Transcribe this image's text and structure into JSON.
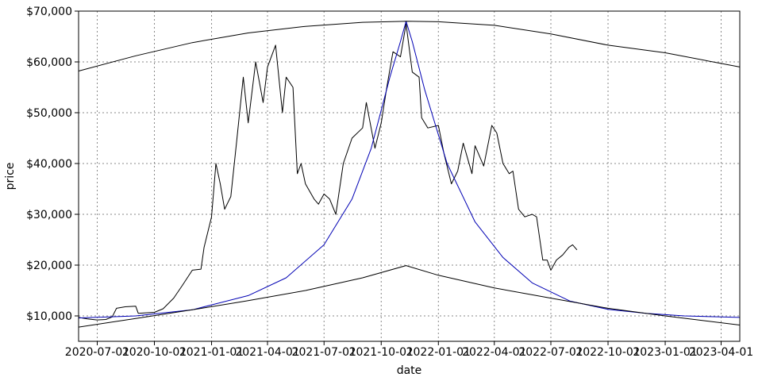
{
  "chart_data": {
    "type": "line",
    "title": "",
    "xlabel": "date",
    "ylabel": "price",
    "xlim": [
      "2020-06-01",
      "2023-05-01"
    ],
    "ylim": [
      5000,
      70000
    ],
    "grid": true,
    "x_ticks": [
      "2020-07-01",
      "2020-10-01",
      "2021-01-01",
      "2021-04-01",
      "2021-07-01",
      "2021-10-01",
      "2022-01-01",
      "2022-04-01",
      "2022-07-01",
      "2022-10-01",
      "2023-01-01",
      "2023-04-01"
    ],
    "x_tick_labels": [
      "2020-07-01",
      "2020-10-01",
      "2021-01-01",
      "2021-04-01",
      "2021-07-01",
      "2021-10-01",
      "2022-01-01",
      "2022-04-01",
      "2022-07-01",
      "2022-10-01",
      "2023-01-01",
      "2023-04-01"
    ],
    "y_ticks": [
      10000,
      20000,
      30000,
      40000,
      50000,
      60000,
      70000
    ],
    "y_tick_labels": [
      "$10,000",
      "$20,000",
      "$30,000",
      "$40,000",
      "$50,000",
      "$60,000",
      "$70,000"
    ],
    "series": [
      {
        "color": "#000000",
        "x": [
          "2020-06-01",
          "2020-06-15",
          "2020-07-01",
          "2020-07-15",
          "2020-07-25",
          "2020-08-01",
          "2020-08-15",
          "2020-09-01",
          "2020-09-05",
          "2020-09-15",
          "2020-10-01",
          "2020-10-15",
          "2020-11-01",
          "2020-11-15",
          "2020-12-01",
          "2020-12-15",
          "2020-12-20",
          "2021-01-01",
          "2021-01-08",
          "2021-01-15",
          "2021-01-22",
          "2021-02-01",
          "2021-02-10",
          "2021-02-21",
          "2021-03-01",
          "2021-03-13",
          "2021-03-25",
          "2021-04-01",
          "2021-04-14",
          "2021-04-25",
          "2021-05-01",
          "2021-05-12",
          "2021-05-19",
          "2021-05-25",
          "2021-06-01",
          "2021-06-15",
          "2021-06-22",
          "2021-07-01",
          "2021-07-10",
          "2021-07-20",
          "2021-08-01",
          "2021-08-15",
          "2021-09-01",
          "2021-09-07",
          "2021-09-21",
          "2021-10-01",
          "2021-10-10",
          "2021-10-20",
          "2021-11-01",
          "2021-11-10",
          "2021-11-20",
          "2021-12-01",
          "2021-12-05",
          "2021-12-15",
          "2022-01-01",
          "2022-01-10",
          "2022-01-22",
          "2022-02-01",
          "2022-02-10",
          "2022-02-24",
          "2022-03-01",
          "2022-03-15",
          "2022-03-28",
          "2022-04-05",
          "2022-04-15",
          "2022-04-25",
          "2022-05-01",
          "2022-05-10",
          "2022-05-20",
          "2022-06-01",
          "2022-06-08",
          "2022-06-18",
          "2022-06-25",
          "2022-07-01",
          "2022-07-10",
          "2022-07-20",
          "2022-07-30",
          "2022-08-05",
          "2022-08-12"
        ],
        "y": [
          9700,
          9400,
          9200,
          9300,
          9800,
          11500,
          11800,
          11900,
          10500,
          10600,
          10700,
          11400,
          13500,
          16000,
          19000,
          19200,
          23500,
          29500,
          40000,
          36000,
          31000,
          33500,
          44000,
          57000,
          48000,
          60000,
          52000,
          59000,
          63300,
          50000,
          57000,
          55000,
          38000,
          40000,
          36000,
          33000,
          32000,
          34000,
          33000,
          30000,
          40000,
          45000,
          47000,
          52000,
          43000,
          48000,
          55000,
          62000,
          61000,
          67500,
          58000,
          57000,
          49000,
          47000,
          47500,
          42000,
          36000,
          38500,
          44000,
          38000,
          43500,
          39500,
          47500,
          46000,
          40000,
          38000,
          38500,
          31000,
          29500,
          30000,
          29500,
          21000,
          21000,
          19000,
          21000,
          22000,
          23500,
          24000,
          23000
        ]
      },
      {
        "color": "#0000b4",
        "x": [
          "2020-06-01",
          "2020-09-01",
          "2020-12-01",
          "2021-03-01",
          "2021-05-01",
          "2021-07-01",
          "2021-08-15",
          "2021-09-15",
          "2021-10-15",
          "2021-11-01",
          "2021-11-10",
          "2021-11-20",
          "2021-12-10",
          "2022-01-15",
          "2022-03-01",
          "2022-04-15",
          "2022-06-01",
          "2022-08-01",
          "2022-10-01",
          "2022-12-01",
          "2023-02-01",
          "2023-05-01"
        ],
        "y": [
          9600,
          10000,
          11200,
          14000,
          17500,
          24000,
          33000,
          43000,
          57000,
          64000,
          68000,
          64000,
          54500,
          40000,
          28500,
          21500,
          16500,
          12900,
          11300,
          10500,
          10000,
          9700
        ]
      },
      {
        "color": "#000000",
        "x": [
          "2020-06-01",
          "2020-09-01",
          "2020-12-01",
          "2021-03-01",
          "2021-06-01",
          "2021-09-01",
          "2021-11-10",
          "2022-01-01",
          "2022-04-01",
          "2022-07-01",
          "2022-10-01",
          "2023-01-01",
          "2023-05-01"
        ],
        "y": [
          7800,
          9500,
          11200,
          13000,
          15000,
          17500,
          19900,
          18000,
          15500,
          13500,
          11500,
          10000,
          8200
        ]
      },
      {
        "color": "#000000",
        "x": [
          "2020-06-01",
          "2020-09-01",
          "2020-12-01",
          "2021-03-01",
          "2021-06-01",
          "2021-09-01",
          "2021-11-10",
          "2022-01-01",
          "2022-04-01",
          "2022-07-01",
          "2022-10-01",
          "2023-01-01",
          "2023-05-01"
        ],
        "y": [
          58200,
          61200,
          63800,
          65700,
          67000,
          67800,
          68000,
          67900,
          67200,
          65500,
          63300,
          61800,
          59000
        ]
      }
    ]
  }
}
